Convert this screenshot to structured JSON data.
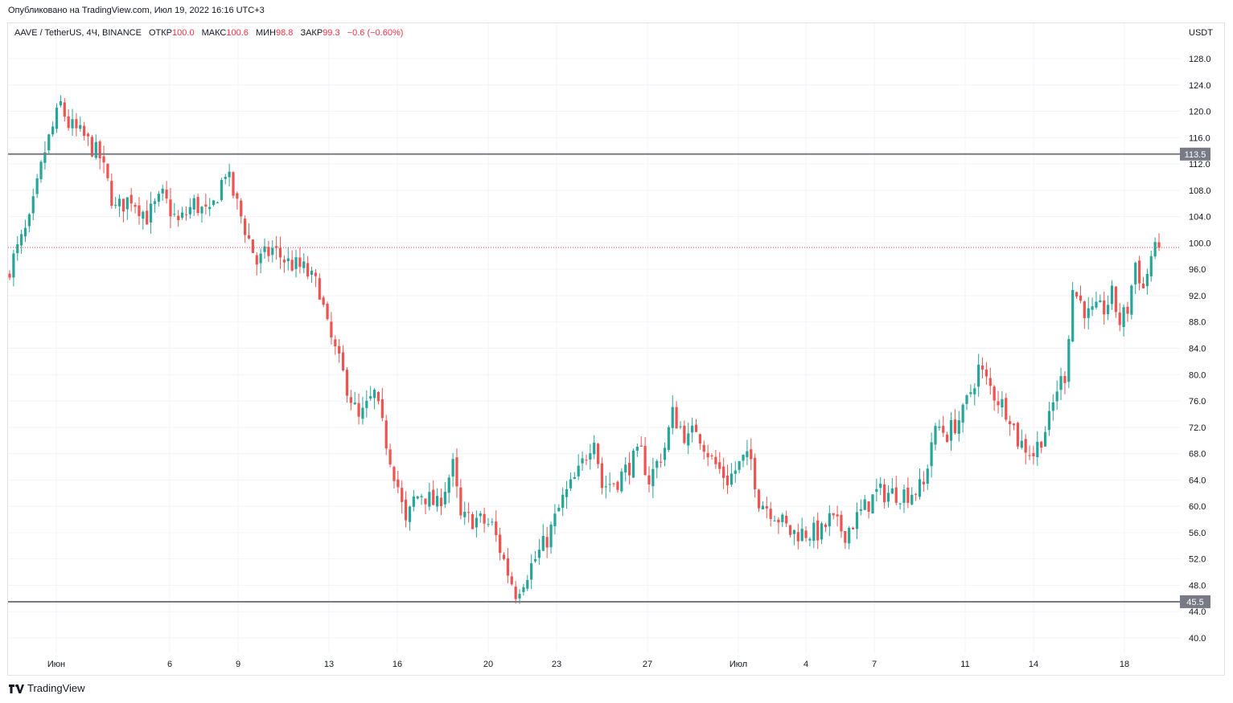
{
  "header": {
    "published_text": "Опубликовано на TradingView.com, Июл 19, 2022 16:16 UTC+3"
  },
  "legend": {
    "symbol": "AAVE / TetherUS, 4Ч, BINANCE",
    "open_label": "ОТКР",
    "open_value": "100.0",
    "high_label": "МАКС",
    "high_value": "100.6",
    "low_label": "МИН",
    "low_value": "98.8",
    "close_label": "ЗАКР",
    "close_value": "99.3",
    "change": "−0.6 (−0.60%)"
  },
  "footer": {
    "brand": "TradingView",
    "logo_icon": "tradingview-logo-icon"
  },
  "colors": {
    "up": "#26a69a",
    "down": "#ef5350",
    "grid": "#f0f3fa",
    "level_line": "#787b86",
    "price_line": "#f23645",
    "label_bg": "#787b86"
  },
  "chart_data": {
    "type": "candlestick",
    "symbol": "AAVE / TetherUS",
    "timeframe": "4Ч",
    "exchange": "BINANCE",
    "currency": "USDT",
    "ylim": [
      37,
      131
    ],
    "y_ticks": [
      "128.0",
      "124.0",
      "120.0",
      "116.0",
      "112.0",
      "108.0",
      "104.0",
      "100.0",
      "96.0",
      "92.0",
      "88.0",
      "84.0",
      "80.0",
      "76.0",
      "72.0",
      "68.0",
      "64.0",
      "60.0",
      "56.0",
      "52.0",
      "48.0",
      "44.0",
      "40.0"
    ],
    "x_ticks": [
      "Июн",
      "6",
      "9",
      "13",
      "16",
      "20",
      "23",
      "27",
      "Июл",
      "4",
      "7",
      "11",
      "14",
      "18"
    ],
    "horizontal_levels": [
      113.5,
      45.5
    ],
    "horizontal_level_labels": [
      "113.5",
      "45.5"
    ],
    "last_close": 99.3,
    "path": [
      [
        0,
        95
      ],
      [
        3,
        103
      ],
      [
        5,
        114
      ],
      [
        7,
        121
      ],
      [
        8,
        118
      ],
      [
        10,
        116
      ],
      [
        12,
        113
      ],
      [
        14,
        105
      ],
      [
        16,
        107
      ],
      [
        18,
        104
      ],
      [
        20,
        107
      ],
      [
        22,
        103
      ],
      [
        24,
        106
      ],
      [
        26,
        104
      ],
      [
        28,
        111
      ],
      [
        30,
        104
      ],
      [
        32,
        97
      ],
      [
        34,
        99
      ],
      [
        36,
        97
      ],
      [
        38,
        96
      ],
      [
        40,
        93
      ],
      [
        41,
        87
      ],
      [
        43,
        80
      ],
      [
        45,
        73
      ],
      [
        47,
        77
      ],
      [
        48,
        72
      ],
      [
        50,
        63
      ],
      [
        51,
        57
      ],
      [
        52,
        61
      ],
      [
        53,
        62
      ],
      [
        54,
        61
      ],
      [
        55,
        60
      ],
      [
        57,
        66
      ],
      [
        58,
        58
      ],
      [
        60,
        58
      ],
      [
        62,
        57
      ],
      [
        64,
        50
      ],
      [
        65,
        47
      ],
      [
        67,
        51
      ],
      [
        69,
        55
      ],
      [
        71,
        61
      ],
      [
        73,
        65
      ],
      [
        75,
        71
      ],
      [
        76,
        63
      ],
      [
        78,
        64
      ],
      [
        80,
        67
      ],
      [
        81,
        68
      ],
      [
        82,
        64
      ],
      [
        84,
        69
      ],
      [
        85,
        74
      ],
      [
        87,
        70
      ],
      [
        88,
        72
      ],
      [
        90,
        67
      ],
      [
        92,
        64
      ],
      [
        94,
        67
      ],
      [
        95,
        67
      ],
      [
        96,
        61
      ],
      [
        98,
        59
      ],
      [
        100,
        56
      ],
      [
        102,
        56
      ],
      [
        104,
        56
      ],
      [
        105,
        58
      ],
      [
        107,
        56
      ],
      [
        109,
        59
      ],
      [
        111,
        62
      ],
      [
        113,
        62
      ],
      [
        115,
        62
      ],
      [
        117,
        63
      ],
      [
        118,
        70
      ],
      [
        119,
        72
      ],
      [
        120,
        71
      ],
      [
        122,
        74
      ],
      [
        124,
        81
      ],
      [
        125,
        79
      ],
      [
        126,
        77
      ],
      [
        128,
        74
      ],
      [
        129,
        70
      ],
      [
        130,
        69
      ],
      [
        131,
        68
      ],
      [
        133,
        73
      ],
      [
        134,
        78
      ],
      [
        135,
        80
      ],
      [
        136,
        93
      ],
      [
        138,
        89
      ],
      [
        140,
        90
      ],
      [
        141,
        92
      ],
      [
        142,
        88
      ],
      [
        143,
        90
      ],
      [
        144,
        97
      ],
      [
        145,
        93
      ],
      [
        146,
        98
      ],
      [
        147,
        99.3
      ]
    ]
  }
}
